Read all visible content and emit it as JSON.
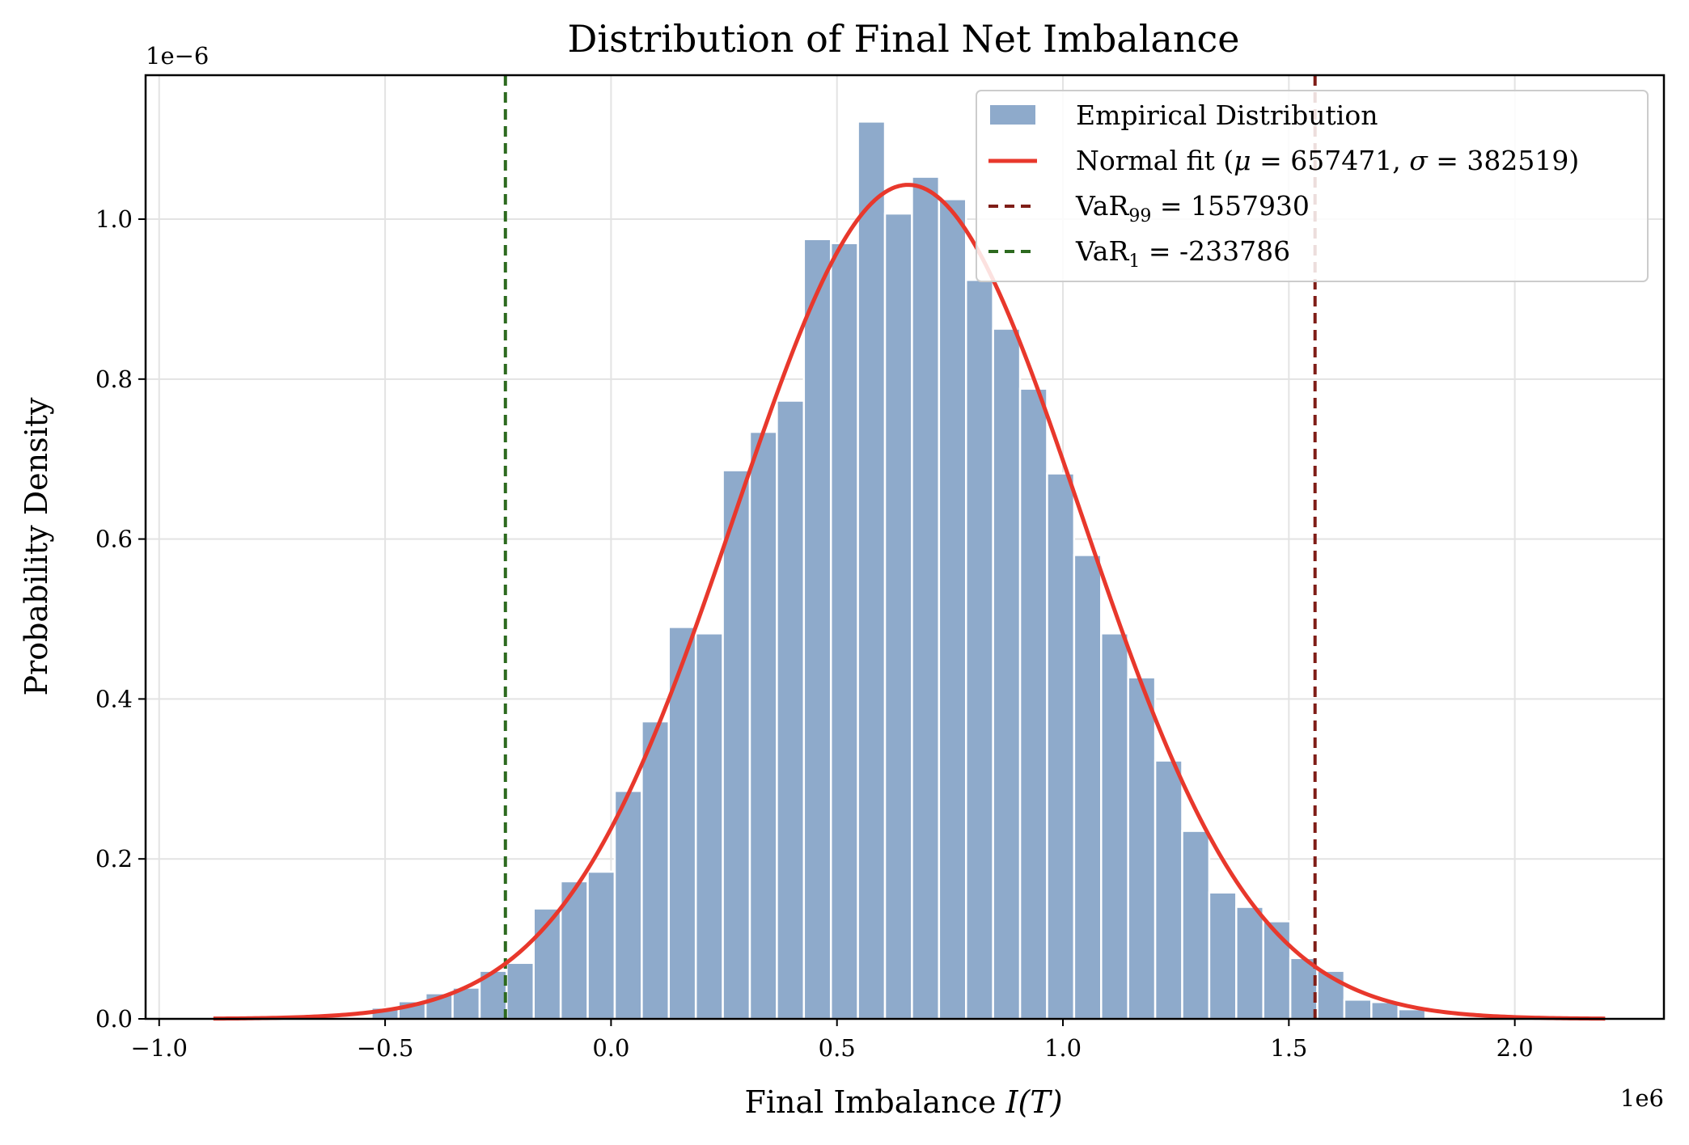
{
  "chart_data": {
    "type": "bar",
    "title": "Distribution of Final Net Imbalance",
    "xlabel": "Final Imbalance I(T)",
    "xlabel_main": "Final Imbalance ",
    "xlabel_var": "I(T)",
    "ylabel": "Probability Density",
    "x_multiplier": "1e6",
    "y_multiplier": "1e−6",
    "xlim": [
      -1.03,
      2.33
    ],
    "ylim": [
      0,
      1.18
    ],
    "x_ticks": [
      -1.0,
      -0.5,
      0.0,
      0.5,
      1.0,
      1.5,
      2.0
    ],
    "x_tick_labels": [
      "−1.0",
      "−0.5",
      "0.0",
      "0.5",
      "1.0",
      "1.5",
      "2.0"
    ],
    "y_ticks": [
      0.0,
      0.2,
      0.4,
      0.6,
      0.8,
      1.0
    ],
    "y_tick_labels": [
      "0.0",
      "0.2",
      "0.4",
      "0.6",
      "0.8",
      "1.0"
    ],
    "grid": true,
    "legend_position": "top-right",
    "histogram": {
      "name": "Empirical Distribution",
      "color": "#8eaacb",
      "bin_start": -0.53,
      "bin_width": 0.0598,
      "values": [
        0.014,
        0.022,
        0.032,
        0.039,
        0.06,
        0.07,
        0.138,
        0.172,
        0.184,
        0.285,
        0.372,
        0.49,
        0.482,
        0.686,
        0.734,
        0.773,
        0.975,
        0.97,
        1.122,
        1.007,
        1.053,
        1.025,
        0.924,
        0.863,
        0.788,
        0.682,
        0.58,
        0.482,
        0.427,
        0.323,
        0.235,
        0.158,
        0.14,
        0.122,
        0.076,
        0.06,
        0.024,
        0.021,
        0.012
      ]
    },
    "normal_fit": {
      "label_text": "Normal fit (",
      "label_mu": "μ",
      "label_sigma": "σ",
      "mu": 657471,
      "sigma": 382519,
      "mu_text": " = 657471, ",
      "sigma_text": " = 382519)",
      "x_range": [
        -0.88,
        2.2
      ],
      "color": "#e8382c"
    },
    "var_lines": [
      {
        "name": "VaR99",
        "prefix": "VaR",
        "sub": "99",
        "value_text": " = 1557930",
        "x": 1.55793,
        "color": "#7f1d17"
      },
      {
        "name": "VaR1",
        "prefix": "VaR",
        "sub": "1",
        "value_text": " = -233786",
        "x": -0.233786,
        "color": "#2d6a1f"
      }
    ]
  }
}
